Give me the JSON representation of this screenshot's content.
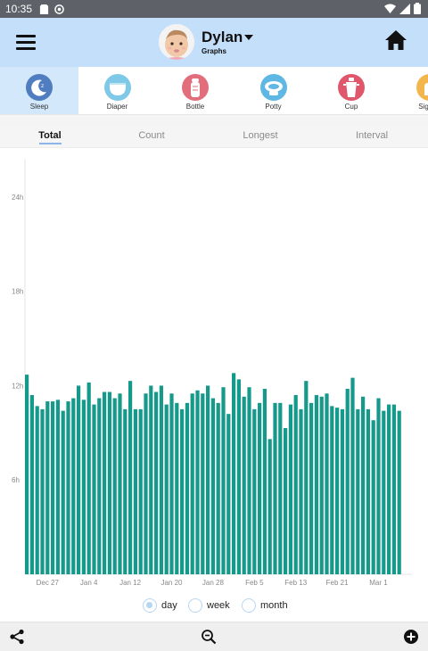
{
  "status_bar": {
    "time": "10:35"
  },
  "header": {
    "profile_name": "Dylan",
    "subtitle": "Graphs"
  },
  "categories": [
    {
      "label": "Sleep",
      "icon": "moon-icon",
      "color": "#4f7dc0",
      "selected": true
    },
    {
      "label": "Diaper",
      "icon": "diaper-icon",
      "color": "#7ec8e8"
    },
    {
      "label": "Bottle",
      "icon": "bottle-icon",
      "color": "#e26d7b"
    },
    {
      "label": "Potty",
      "icon": "potty-icon",
      "color": "#5fb7e3"
    },
    {
      "label": "Cup",
      "icon": "cup-icon",
      "color": "#e0566a"
    },
    {
      "label": "Sign la",
      "icon": "sign-icon",
      "color": "#f2b64c"
    }
  ],
  "tabs": [
    {
      "label": "Total",
      "active": true
    },
    {
      "label": "Count"
    },
    {
      "label": "Longest"
    },
    {
      "label": "Interval"
    }
  ],
  "chart_data": {
    "type": "bar",
    "y_ticks": [
      "6h",
      "12h",
      "18h",
      "24h"
    ],
    "ylim": [
      0,
      27
    ],
    "x_tick_labels": [
      "Dec 27",
      "Jan 4",
      "Jan 12",
      "Jan 20",
      "Jan 28",
      "Feb 5",
      "Feb 13",
      "Feb 21",
      "Mar 1"
    ],
    "x_tick_index": [
      4,
      12,
      20,
      28,
      36,
      44,
      52,
      60,
      68
    ],
    "bar_color": "#15998a",
    "values": [
      12.7,
      11.4,
      10.7,
      10.5,
      11.0,
      11.0,
      11.1,
      10.4,
      11.0,
      11.2,
      12.0,
      11.1,
      12.2,
      10.8,
      11.2,
      11.6,
      11.6,
      11.2,
      11.5,
      10.5,
      12.3,
      10.5,
      10.5,
      11.5,
      12.0,
      11.6,
      12.0,
      10.8,
      11.5,
      10.9,
      10.5,
      10.9,
      11.5,
      11.7,
      11.5,
      12.0,
      11.2,
      10.9,
      11.9,
      10.2,
      12.8,
      12.4,
      11.3,
      11.9,
      10.5,
      10.9,
      11.8,
      8.6,
      10.9,
      10.9,
      9.3,
      10.8,
      11.4,
      10.5,
      12.3,
      10.9,
      11.4,
      11.3,
      11.5,
      10.7,
      10.6,
      10.5,
      11.8,
      12.5,
      10.5,
      11.3,
      10.5,
      9.8,
      11.2,
      10.4,
      10.8,
      10.8,
      10.4
    ]
  },
  "range_options": [
    {
      "label": "day",
      "checked": true
    },
    {
      "label": "week"
    },
    {
      "label": "month"
    }
  ]
}
